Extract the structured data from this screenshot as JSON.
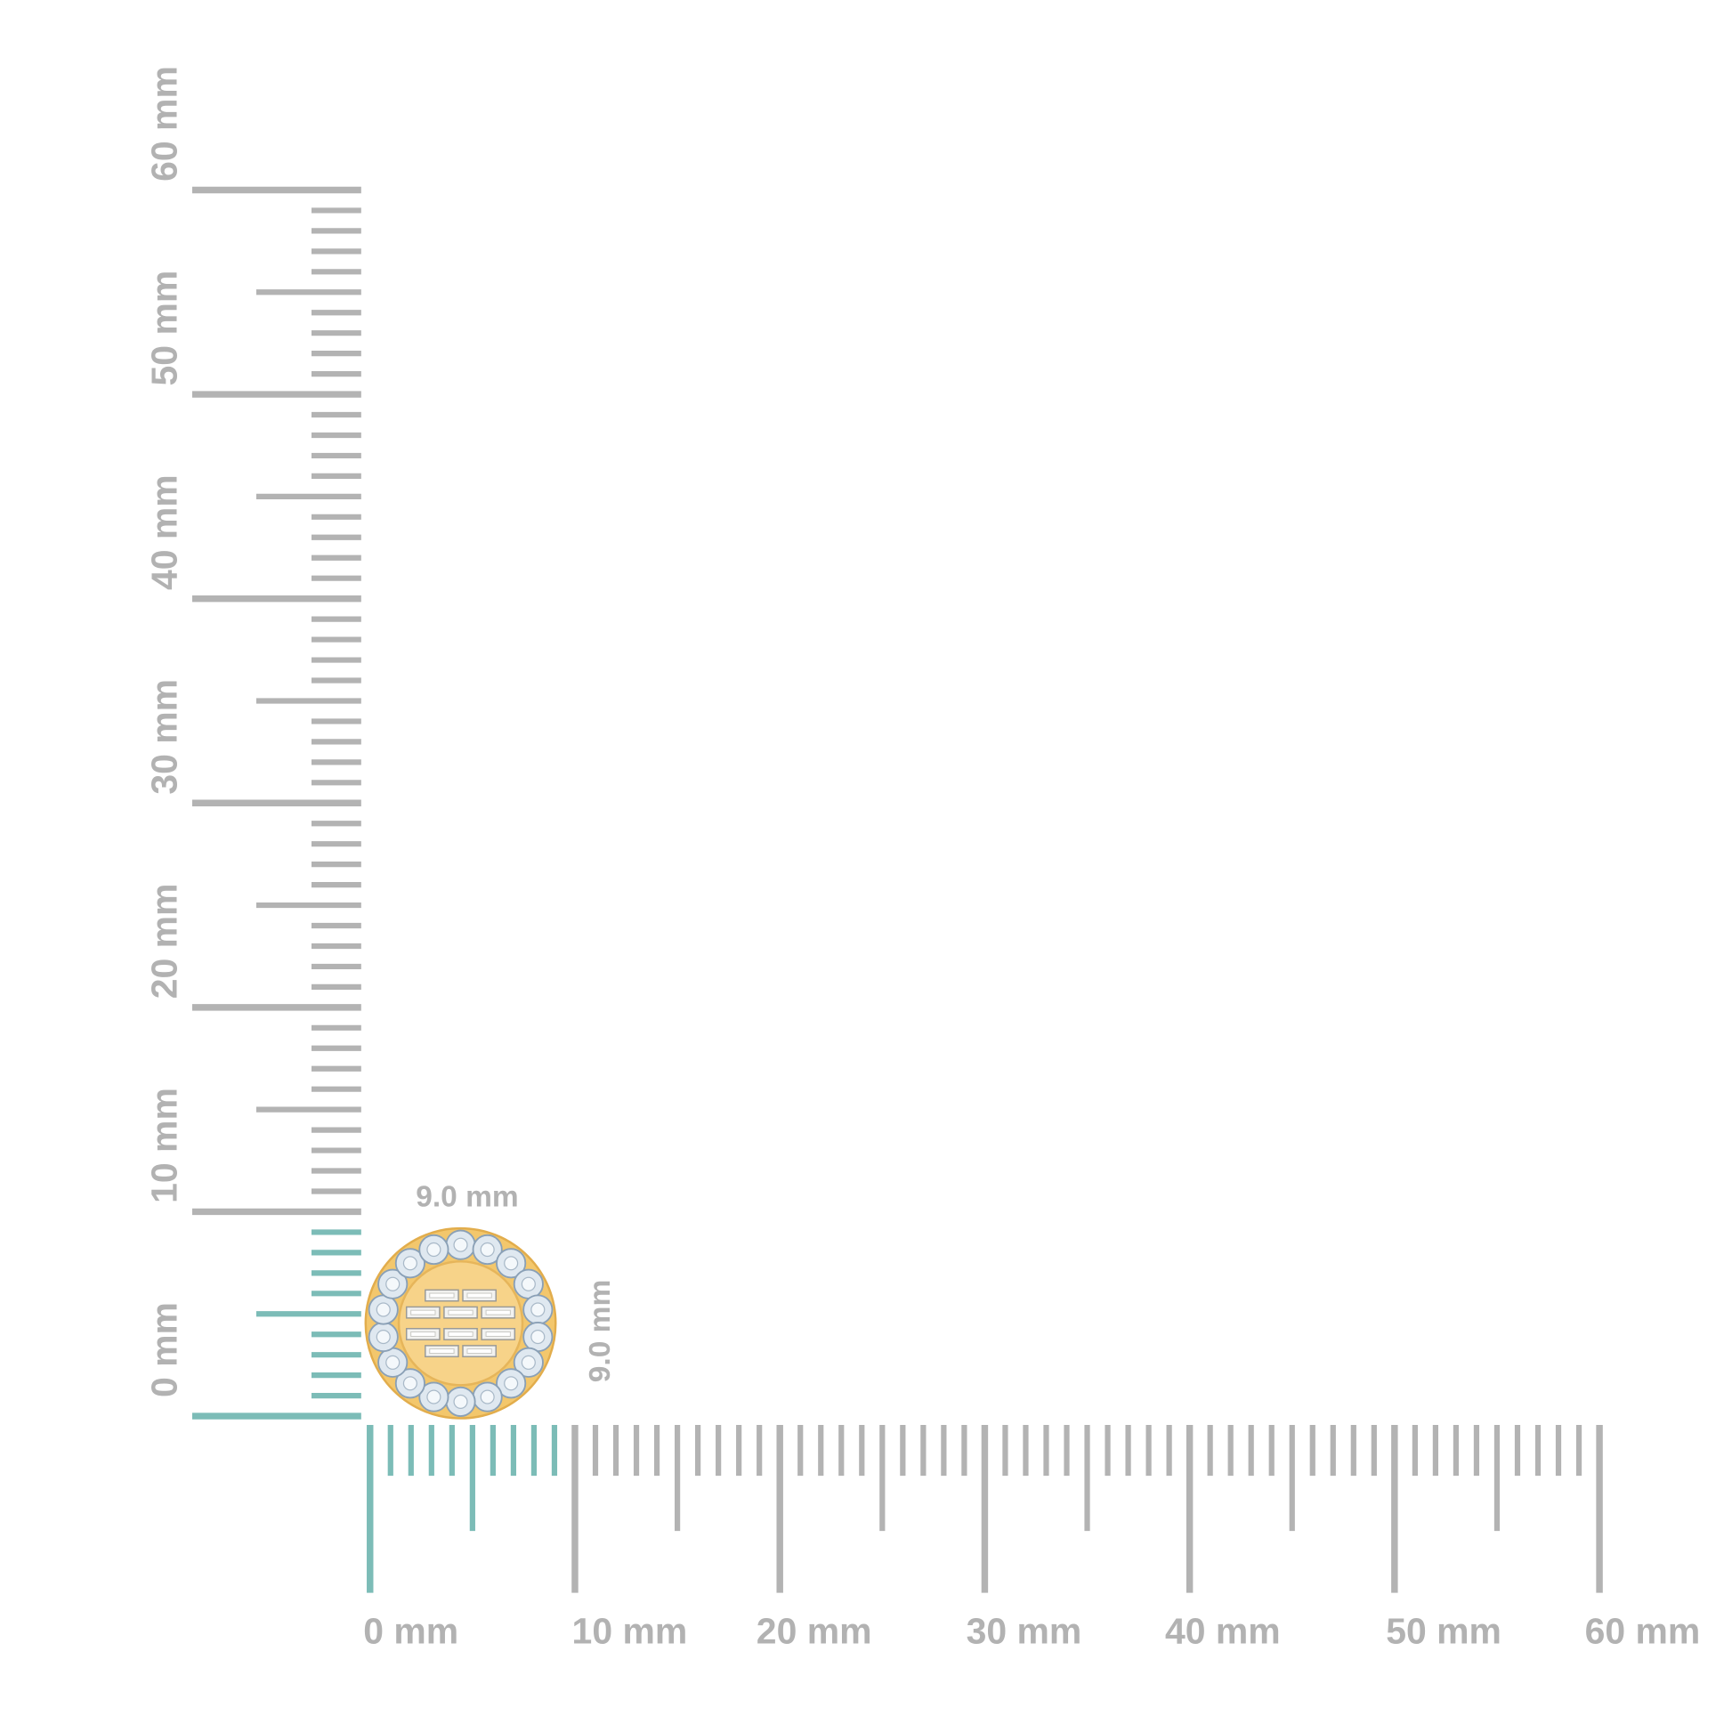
{
  "ruler": {
    "unit": "mm",
    "range_mm": [
      0,
      60
    ],
    "highlight_mm": 9,
    "colors": {
      "tick": "#b3b3b3",
      "highlight": "#7cbcb7",
      "label": "#b2b2b2"
    },
    "x_labels": [
      "0 mm",
      "10 mm",
      "20 mm",
      "30 mm",
      "40 mm",
      "50 mm",
      "60 mm"
    ],
    "y_labels": [
      "0 mm",
      "10 mm",
      "20 mm",
      "30 mm",
      "40 mm",
      "50 mm",
      "60 mm"
    ]
  },
  "product": {
    "width_label": "9.0 mm",
    "height_label": "9.0 mm",
    "metal_color": "#f3c76c",
    "stone_color": "#dfe8f0"
  }
}
